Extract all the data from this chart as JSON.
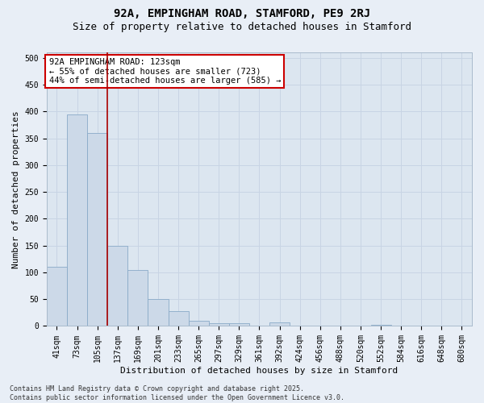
{
  "title": "92A, EMPINGHAM ROAD, STAMFORD, PE9 2RJ",
  "subtitle": "Size of property relative to detached houses in Stamford",
  "xlabel": "Distribution of detached houses by size in Stamford",
  "ylabel": "Number of detached properties",
  "categories": [
    "41sqm",
    "73sqm",
    "105sqm",
    "137sqm",
    "169sqm",
    "201sqm",
    "233sqm",
    "265sqm",
    "297sqm",
    "329sqm",
    "361sqm",
    "392sqm",
    "424sqm",
    "456sqm",
    "488sqm",
    "520sqm",
    "552sqm",
    "584sqm",
    "616sqm",
    "648sqm",
    "680sqm"
  ],
  "values": [
    110,
    395,
    360,
    150,
    105,
    50,
    28,
    10,
    5,
    5,
    0,
    7,
    0,
    0,
    0,
    0,
    2,
    0,
    0,
    0,
    1
  ],
  "bar_color": "#ccd9e8",
  "bar_edge_color": "#89aac8",
  "vline_color": "#aa0000",
  "annotation_text": "92A EMPINGHAM ROAD: 123sqm\n← 55% of detached houses are smaller (723)\n44% of semi-detached houses are larger (585) →",
  "annotation_box_facecolor": "#ffffff",
  "annotation_box_edgecolor": "#cc0000",
  "grid_color": "#c8d4e4",
  "background_color": "#dce6f0",
  "fig_background_color": "#e8eef6",
  "footer_text": "Contains HM Land Registry data © Crown copyright and database right 2025.\nContains public sector information licensed under the Open Government Licence v3.0.",
  "ylim": [
    0,
    510
  ],
  "yticks": [
    0,
    50,
    100,
    150,
    200,
    250,
    300,
    350,
    400,
    450,
    500
  ],
  "title_fontsize": 10,
  "subtitle_fontsize": 9,
  "tick_fontsize": 7,
  "ylabel_fontsize": 8,
  "xlabel_fontsize": 8,
  "footer_fontsize": 6,
  "annot_fontsize": 7.5
}
